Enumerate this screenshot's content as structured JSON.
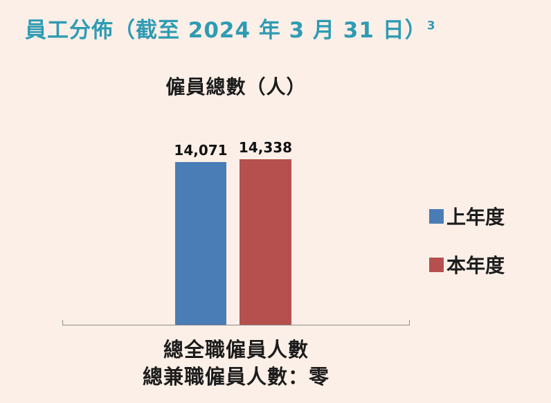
{
  "title": {
    "text": "員工分佈（截至 2024 年 3 月 31 日）",
    "superscript": "3"
  },
  "chart_data": {
    "type": "bar",
    "title": "僱員總數（人）",
    "categories": [
      "上年度",
      "本年度"
    ],
    "series": [
      {
        "name": "上年度",
        "value": 14071,
        "label": "14,071",
        "color": "#4a7cb5"
      },
      {
        "name": "本年度",
        "value": 14338,
        "label": "14,338",
        "color": "#b5504f"
      }
    ],
    "ylim": [
      0,
      14500
    ],
    "grid": false,
    "legend_position": "right",
    "xlabel_line1": "總全職僱員人數",
    "xlabel_line2": "總兼職僱員人數：零",
    "ylabel": ""
  },
  "colors": {
    "background": "#fcefe7",
    "title_accent": "#2e9bb3",
    "bar_previous_year": "#4a7cb5",
    "bar_current_year": "#b5504f",
    "axis_line": "#8a8a8a",
    "text": "#1c1c1c"
  }
}
